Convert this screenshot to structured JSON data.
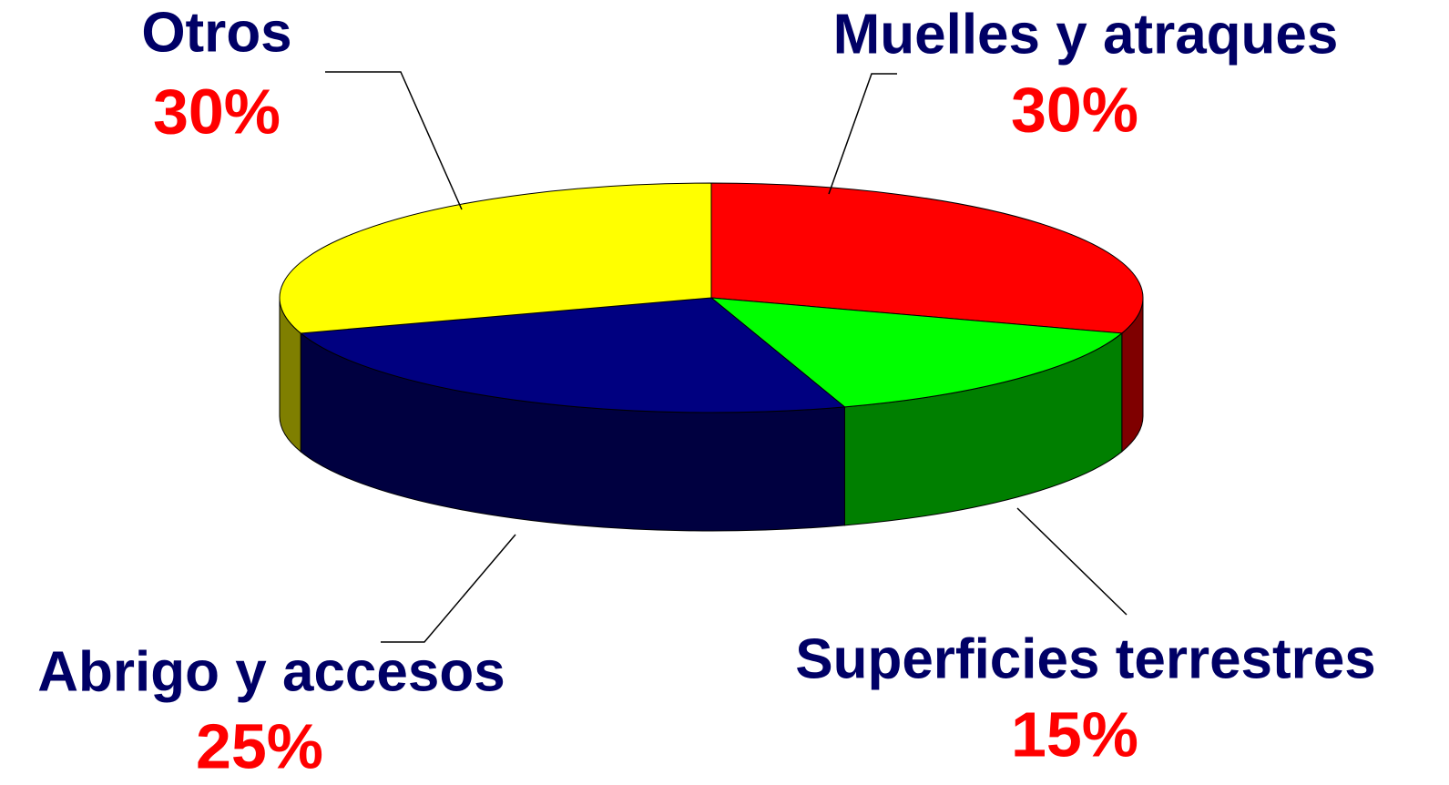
{
  "chart_data": {
    "type": "pie3d",
    "categories": [
      "Muelles y atraques",
      "Superficies terrestres",
      "Abrigo y accesos",
      "Otros"
    ],
    "values": [
      30,
      15,
      25,
      30
    ],
    "value_labels": [
      "30%",
      "15%",
      "25%",
      "30%"
    ],
    "colors": [
      "#ff0000",
      "#00ff00",
      "#000080",
      "#ffff00"
    ]
  }
}
